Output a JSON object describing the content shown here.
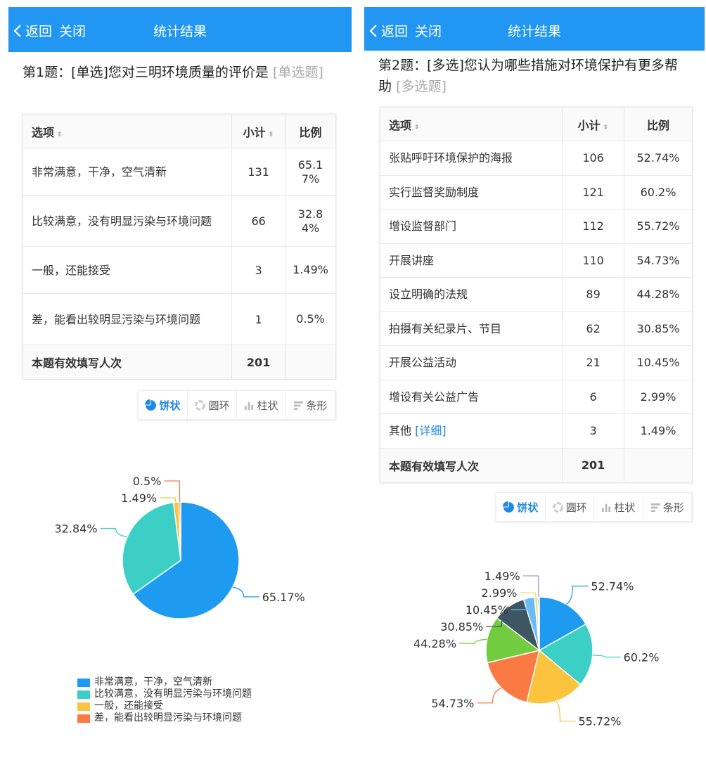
{
  "panels": [
    {
      "header": {
        "back": "返回",
        "close": "关闭",
        "title": "统计结果"
      },
      "question": {
        "text": "第1题：[单选]您对三明环境质量的评价是",
        "tag": "[单选题]"
      },
      "table": {
        "headers": [
          "选项",
          "小计",
          "比例"
        ],
        "rows": [
          [
            "非常满意，干净，空气清新",
            "131",
            "65.17%"
          ],
          [
            "比较满意，没有明显污染与环境问题",
            "66",
            "32.84%"
          ],
          [
            "一般，还能接受",
            "3",
            "1.49%"
          ],
          [
            "差，能看出较明显污染与环境问题",
            "1",
            "0.5%"
          ]
        ],
        "footer": {
          "label": "本题有效填写人次",
          "total": "201"
        }
      },
      "toolbar": [
        "饼状",
        "圆环",
        "柱状",
        "条形"
      ]
    },
    {
      "header": {
        "back": "返回",
        "close": "关闭",
        "title": "统计结果"
      },
      "question": {
        "text": "第2题：[多选]您认为哪些措施对环境保护有更多帮助",
        "tag": "[多选题]"
      },
      "table": {
        "headers": [
          "选项",
          "小计",
          "比例"
        ],
        "rows": [
          [
            "张贴呼吁环境保护的海报",
            "106",
            "52.74%"
          ],
          [
            "实行监督奖励制度",
            "121",
            "60.2%"
          ],
          [
            "增设监督部门",
            "112",
            "55.72%"
          ],
          [
            "开展讲座",
            "110",
            "54.73%"
          ],
          [
            "设立明确的法规",
            "89",
            "44.28%"
          ],
          [
            "拍摄有关纪录片、节目",
            "62",
            "30.85%"
          ],
          [
            "开展公益活动",
            "21",
            "10.45%"
          ],
          [
            "增设有关公益广告",
            "6",
            "2.99%"
          ],
          [
            "其他",
            "3",
            "1.49%"
          ]
        ],
        "detail_link": "[详细]",
        "footer": {
          "label": "本题有效填写人次",
          "total": "201"
        }
      },
      "toolbar": [
        "饼状",
        "圆环",
        "柱状",
        "条形"
      ]
    }
  ],
  "chart_data": [
    {
      "type": "pie",
      "categories": [
        "非常满意，干净，空气清新",
        "比较满意，没有明显污染与环境问题",
        "一般，还能接受",
        "差，能看出较明显污染与环境问题"
      ],
      "values": [
        65.17,
        32.84,
        1.49,
        0.5
      ],
      "labels": [
        "65.17%",
        "32.84%",
        "1.49%",
        "0.5%"
      ],
      "colors": [
        "#1e9bf0",
        "#3ccfc6",
        "#fcc43e",
        "#fb7a44"
      ],
      "legend": "bottom"
    },
    {
      "type": "pie",
      "categories": [
        "张贴呼吁环境保护的海报",
        "实行监督奖励制度",
        "增设监督部门",
        "开展讲座",
        "设立明确的法规",
        "拍摄有关纪录片、节目",
        "开展公益活动",
        "增设有关公益广告",
        "其他"
      ],
      "values": [
        52.74,
        60.2,
        55.72,
        54.73,
        44.28,
        30.85,
        10.45,
        2.99,
        1.49
      ],
      "labels": [
        "52.74%",
        "60.2%",
        "55.72%",
        "54.73%",
        "44.28%",
        "30.85%",
        "10.45%",
        "2.99%",
        "1.49%"
      ],
      "colors": [
        "#1e9bf0",
        "#3ccfc6",
        "#fcc43e",
        "#fb7a44",
        "#72cc3f",
        "#3e5563",
        "#68bdf5",
        "#e6e27a",
        "#a99ad6"
      ]
    }
  ]
}
